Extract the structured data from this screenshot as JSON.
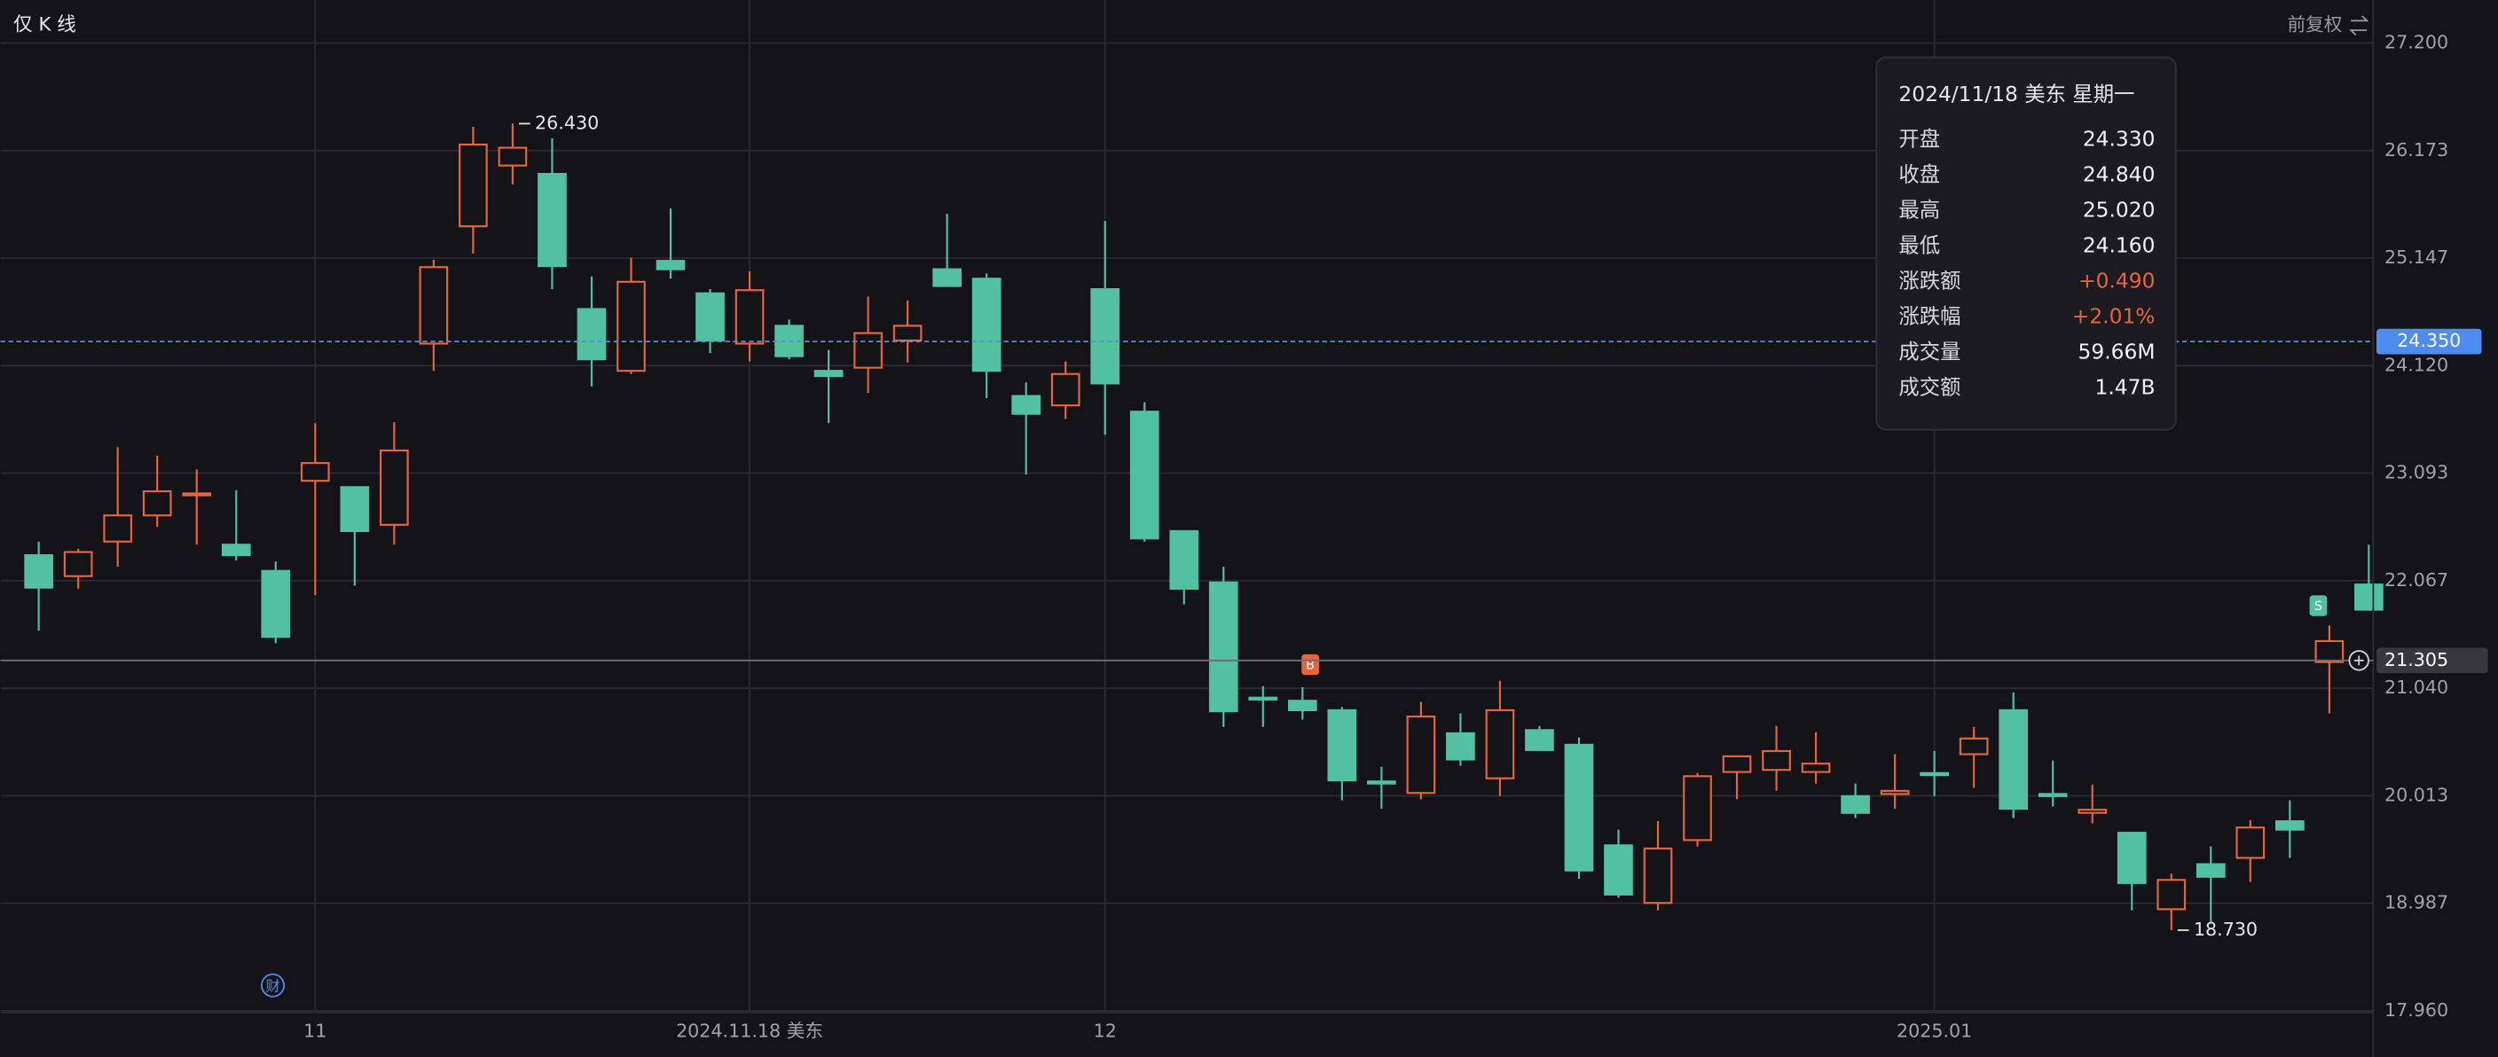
{
  "chart_data": {
    "type": "candlestick",
    "toggle_label": "仅 K 线",
    "adjust_label": "前复权",
    "up_color": "#e8643a",
    "down_color": "#52c1a0",
    "categories": [
      null,
      null,
      null,
      null,
      null,
      null,
      null,
      "11",
      null,
      null,
      null,
      null,
      null,
      null,
      null,
      null,
      null,
      null,
      "2024.11.18 美东",
      null,
      null,
      null,
      null,
      null,
      null,
      null,
      null,
      "12",
      null,
      null,
      null,
      null,
      null,
      null,
      null,
      null,
      null,
      null,
      null,
      null,
      null,
      null,
      null,
      null,
      null,
      null,
      null,
      null,
      "2025.01",
      null,
      null,
      null,
      null,
      null,
      null,
      null,
      null,
      null,
      null,
      null
    ],
    "open": [
      22.31,
      22.11,
      22.44,
      22.69,
      22.89,
      22.41,
      22.16,
      23.02,
      22.96,
      22.6,
      24.33,
      25.45,
      26.03,
      25.95,
      24.66,
      24.07,
      25.12,
      24.81,
      24.33,
      24.5,
      24.07,
      24.1,
      24.36,
      25.04,
      24.95,
      23.83,
      23.74,
      24.85,
      23.68,
      22.54,
      22.05,
      20.95,
      20.92,
      20.83,
      20.15,
      20.04,
      20.61,
      20.18,
      20.64,
      20.5,
      19.54,
      18.99,
      19.59,
      20.24,
      20.26,
      20.24,
      20.01,
      20.03,
      20.23,
      20.41,
      20.83,
      20.03,
      19.85,
      19.66,
      18.93,
      19.36,
      19.42,
      19.77,
      21.29,
      22.03
    ],
    "high": [
      22.44,
      22.37,
      23.34,
      23.26,
      23.13,
      22.93,
      22.25,
      23.57,
      22.96,
      23.58,
      25.13,
      26.4,
      26.43,
      26.29,
      24.97,
      25.15,
      25.62,
      24.85,
      25.02,
      24.56,
      24.27,
      24.78,
      24.74,
      25.57,
      25.0,
      23.96,
      24.16,
      25.5,
      23.77,
      22.54,
      22.2,
      21.06,
      21.05,
      20.86,
      20.29,
      20.91,
      20.8,
      21.11,
      20.68,
      20.57,
      19.69,
      19.77,
      20.23,
      20.39,
      20.68,
      20.62,
      20.13,
      20.41,
      20.44,
      20.67,
      21.0,
      20.35,
      20.12,
      19.66,
      19.27,
      19.53,
      19.78,
      19.97,
      21.64,
      22.41
    ],
    "low": [
      21.59,
      21.99,
      22.2,
      22.58,
      22.41,
      22.26,
      21.47,
      21.93,
      22.02,
      22.41,
      24.07,
      25.19,
      25.85,
      24.85,
      23.92,
      24.04,
      24.95,
      24.24,
      24.16,
      24.18,
      23.57,
      23.86,
      24.15,
      24.88,
      23.81,
      23.08,
      23.61,
      23.46,
      22.44,
      21.84,
      20.67,
      20.67,
      20.74,
      19.97,
      19.89,
      19.98,
      20.3,
      20.01,
      20.44,
      19.22,
      19.04,
      18.92,
      19.53,
      19.98,
      20.06,
      20.13,
      19.8,
      19.89,
      20.01,
      20.09,
      19.8,
      19.91,
      19.75,
      18.92,
      18.73,
      18.8,
      19.19,
      19.42,
      20.8,
      21.78
    ],
    "close": [
      22.0,
      22.34,
      22.69,
      22.92,
      22.9,
      22.31,
      21.53,
      23.19,
      22.54,
      23.31,
      25.06,
      26.23,
      26.2,
      25.07,
      24.18,
      24.92,
      25.04,
      24.36,
      24.84,
      24.21,
      24.02,
      24.43,
      24.5,
      24.88,
      24.07,
      23.66,
      24.04,
      23.95,
      22.47,
      21.99,
      20.82,
      20.94,
      20.83,
      20.16,
      20.13,
      20.77,
      20.36,
      20.83,
      20.45,
      19.3,
      19.07,
      19.51,
      20.2,
      20.39,
      20.44,
      20.32,
      19.85,
      20.06,
      20.21,
      20.56,
      19.89,
      20.01,
      19.88,
      19.18,
      19.21,
      19.24,
      19.71,
      19.69,
      21.49,
      21.79
    ],
    "ylim": [
      17.96,
      27.2
    ],
    "yticks": [
      {
        "value": 27.2,
        "label": "27.200"
      },
      26.173,
      25.147,
      {
        "value": 24.12,
        "label": "24.120"
      },
      23.093,
      22.067,
      {
        "value": 21.04,
        "label": "21.040"
      },
      20.013,
      18.987,
      {
        "value": 17.96,
        "label": "17.960"
      }
    ],
    "grid": true,
    "high_marker": {
      "value": 26.43,
      "label": "26.430"
    },
    "low_marker": {
      "value": 18.73,
      "label": "18.730"
    },
    "crosshair_price": {
      "value": 24.35,
      "label": "24.350"
    },
    "last_price": {
      "value": 21.305,
      "label": "21.305"
    },
    "buy_marker": "B",
    "sell_marker": "S",
    "event_icon": "财"
  },
  "tooltip": {
    "title": "2024/11/18 美东 星期一",
    "rows": [
      {
        "label": "开盘",
        "value": "24.330"
      },
      {
        "label": "收盘",
        "value": "24.840"
      },
      {
        "label": "最高",
        "value": "25.020"
      },
      {
        "label": "最低",
        "value": "24.160"
      },
      {
        "label": "涨跌额",
        "value": "+0.490",
        "color": "#e8643a"
      },
      {
        "label": "涨跌幅",
        "value": "+2.01%",
        "color": "#e8643a"
      },
      {
        "label": "成交量",
        "value": "59.66M"
      },
      {
        "label": "成交额",
        "value": "1.47B"
      }
    ]
  }
}
